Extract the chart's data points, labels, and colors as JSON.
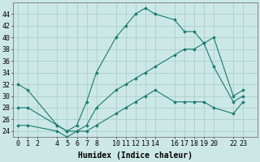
{
  "xlabel": "Humidex (Indice chaleur)",
  "bg_color": "#cce8e6",
  "grid_color": "#aacfcc",
  "line_color": "#1a7a6e",
  "x_ticks": [
    0,
    1,
    2,
    4,
    5,
    6,
    7,
    8,
    10,
    11,
    12,
    13,
    14,
    16,
    17,
    18,
    19,
    20,
    22,
    23
  ],
  "series": [
    {
      "x": [
        0,
        1,
        4,
        5,
        6,
        7,
        8,
        10,
        11,
        12,
        13,
        14,
        16,
        17,
        18,
        19,
        20,
        22,
        23
      ],
      "y": [
        32,
        31,
        25,
        24,
        25,
        29,
        34,
        40,
        42,
        44,
        45,
        44,
        43,
        41,
        41,
        39,
        40,
        30,
        31
      ]
    },
    {
      "x": [
        0,
        1,
        4,
        5,
        6,
        7,
        8,
        10,
        11,
        12,
        13,
        14,
        16,
        17,
        18,
        19,
        20,
        22,
        23
      ],
      "y": [
        28,
        28,
        25,
        24,
        24,
        25,
        28,
        31,
        32,
        33,
        34,
        35,
        37,
        38,
        38,
        39,
        35,
        29,
        30
      ]
    },
    {
      "x": [
        0,
        1,
        4,
        5,
        6,
        7,
        8,
        10,
        11,
        12,
        13,
        14,
        16,
        17,
        18,
        19,
        20,
        22,
        23
      ],
      "y": [
        25,
        25,
        24,
        23,
        24,
        24,
        25,
        27,
        28,
        29,
        30,
        31,
        29,
        29,
        29,
        29,
        28,
        27,
        29
      ]
    }
  ],
  "ylim": [
    23,
    46
  ],
  "xlim": [
    -0.5,
    24.5
  ],
  "yticks": [
    24,
    26,
    28,
    30,
    32,
    34,
    36,
    38,
    40,
    42,
    44
  ],
  "xlabel_fontsize": 7,
  "tick_fontsize": 6
}
